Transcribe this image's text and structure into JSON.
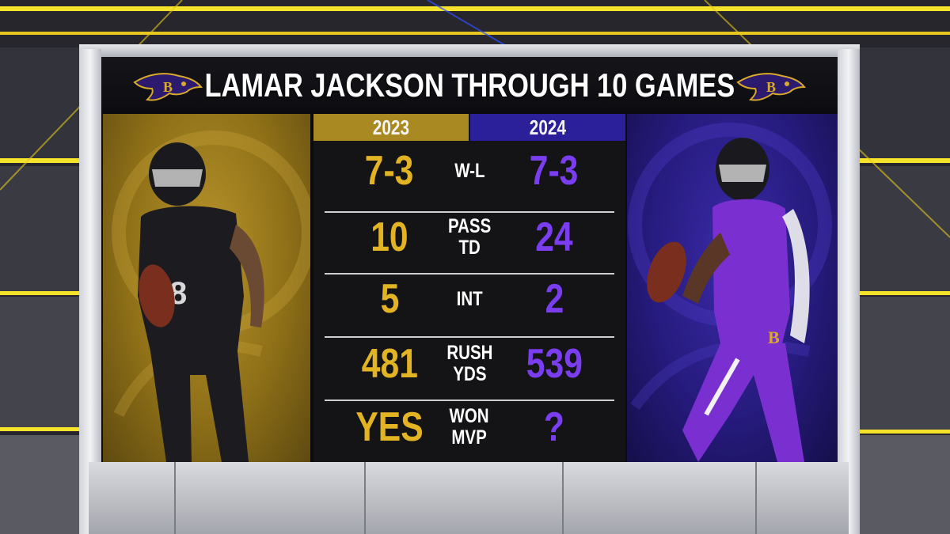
{
  "title": "LAMAR JACKSON THROUGH 10 GAMES",
  "years": [
    "2023",
    "2024"
  ],
  "stats": [
    {
      "label": "W-L",
      "v2023": "7-3",
      "v2024": "7-3"
    },
    {
      "label": "PASS\nTD",
      "v2023": "10",
      "v2024": "24"
    },
    {
      "label": "INT",
      "v2023": "5",
      "v2024": "2"
    },
    {
      "label": "RUSH\nYDS",
      "v2023": "481",
      "v2024": "539"
    },
    {
      "label": "WON\nMVP",
      "v2023": "YES",
      "v2024": "?"
    }
  ],
  "colors": {
    "gold": "#e2b424",
    "purple": "#7a3ef0",
    "gold_panel": "#a98a22",
    "purple_panel": "#2c1f9a",
    "neon_yellow": "#f5e22a"
  },
  "icons": [
    "ravens-logo-icon",
    "player-black-uniform",
    "player-purple-uniform"
  ]
}
